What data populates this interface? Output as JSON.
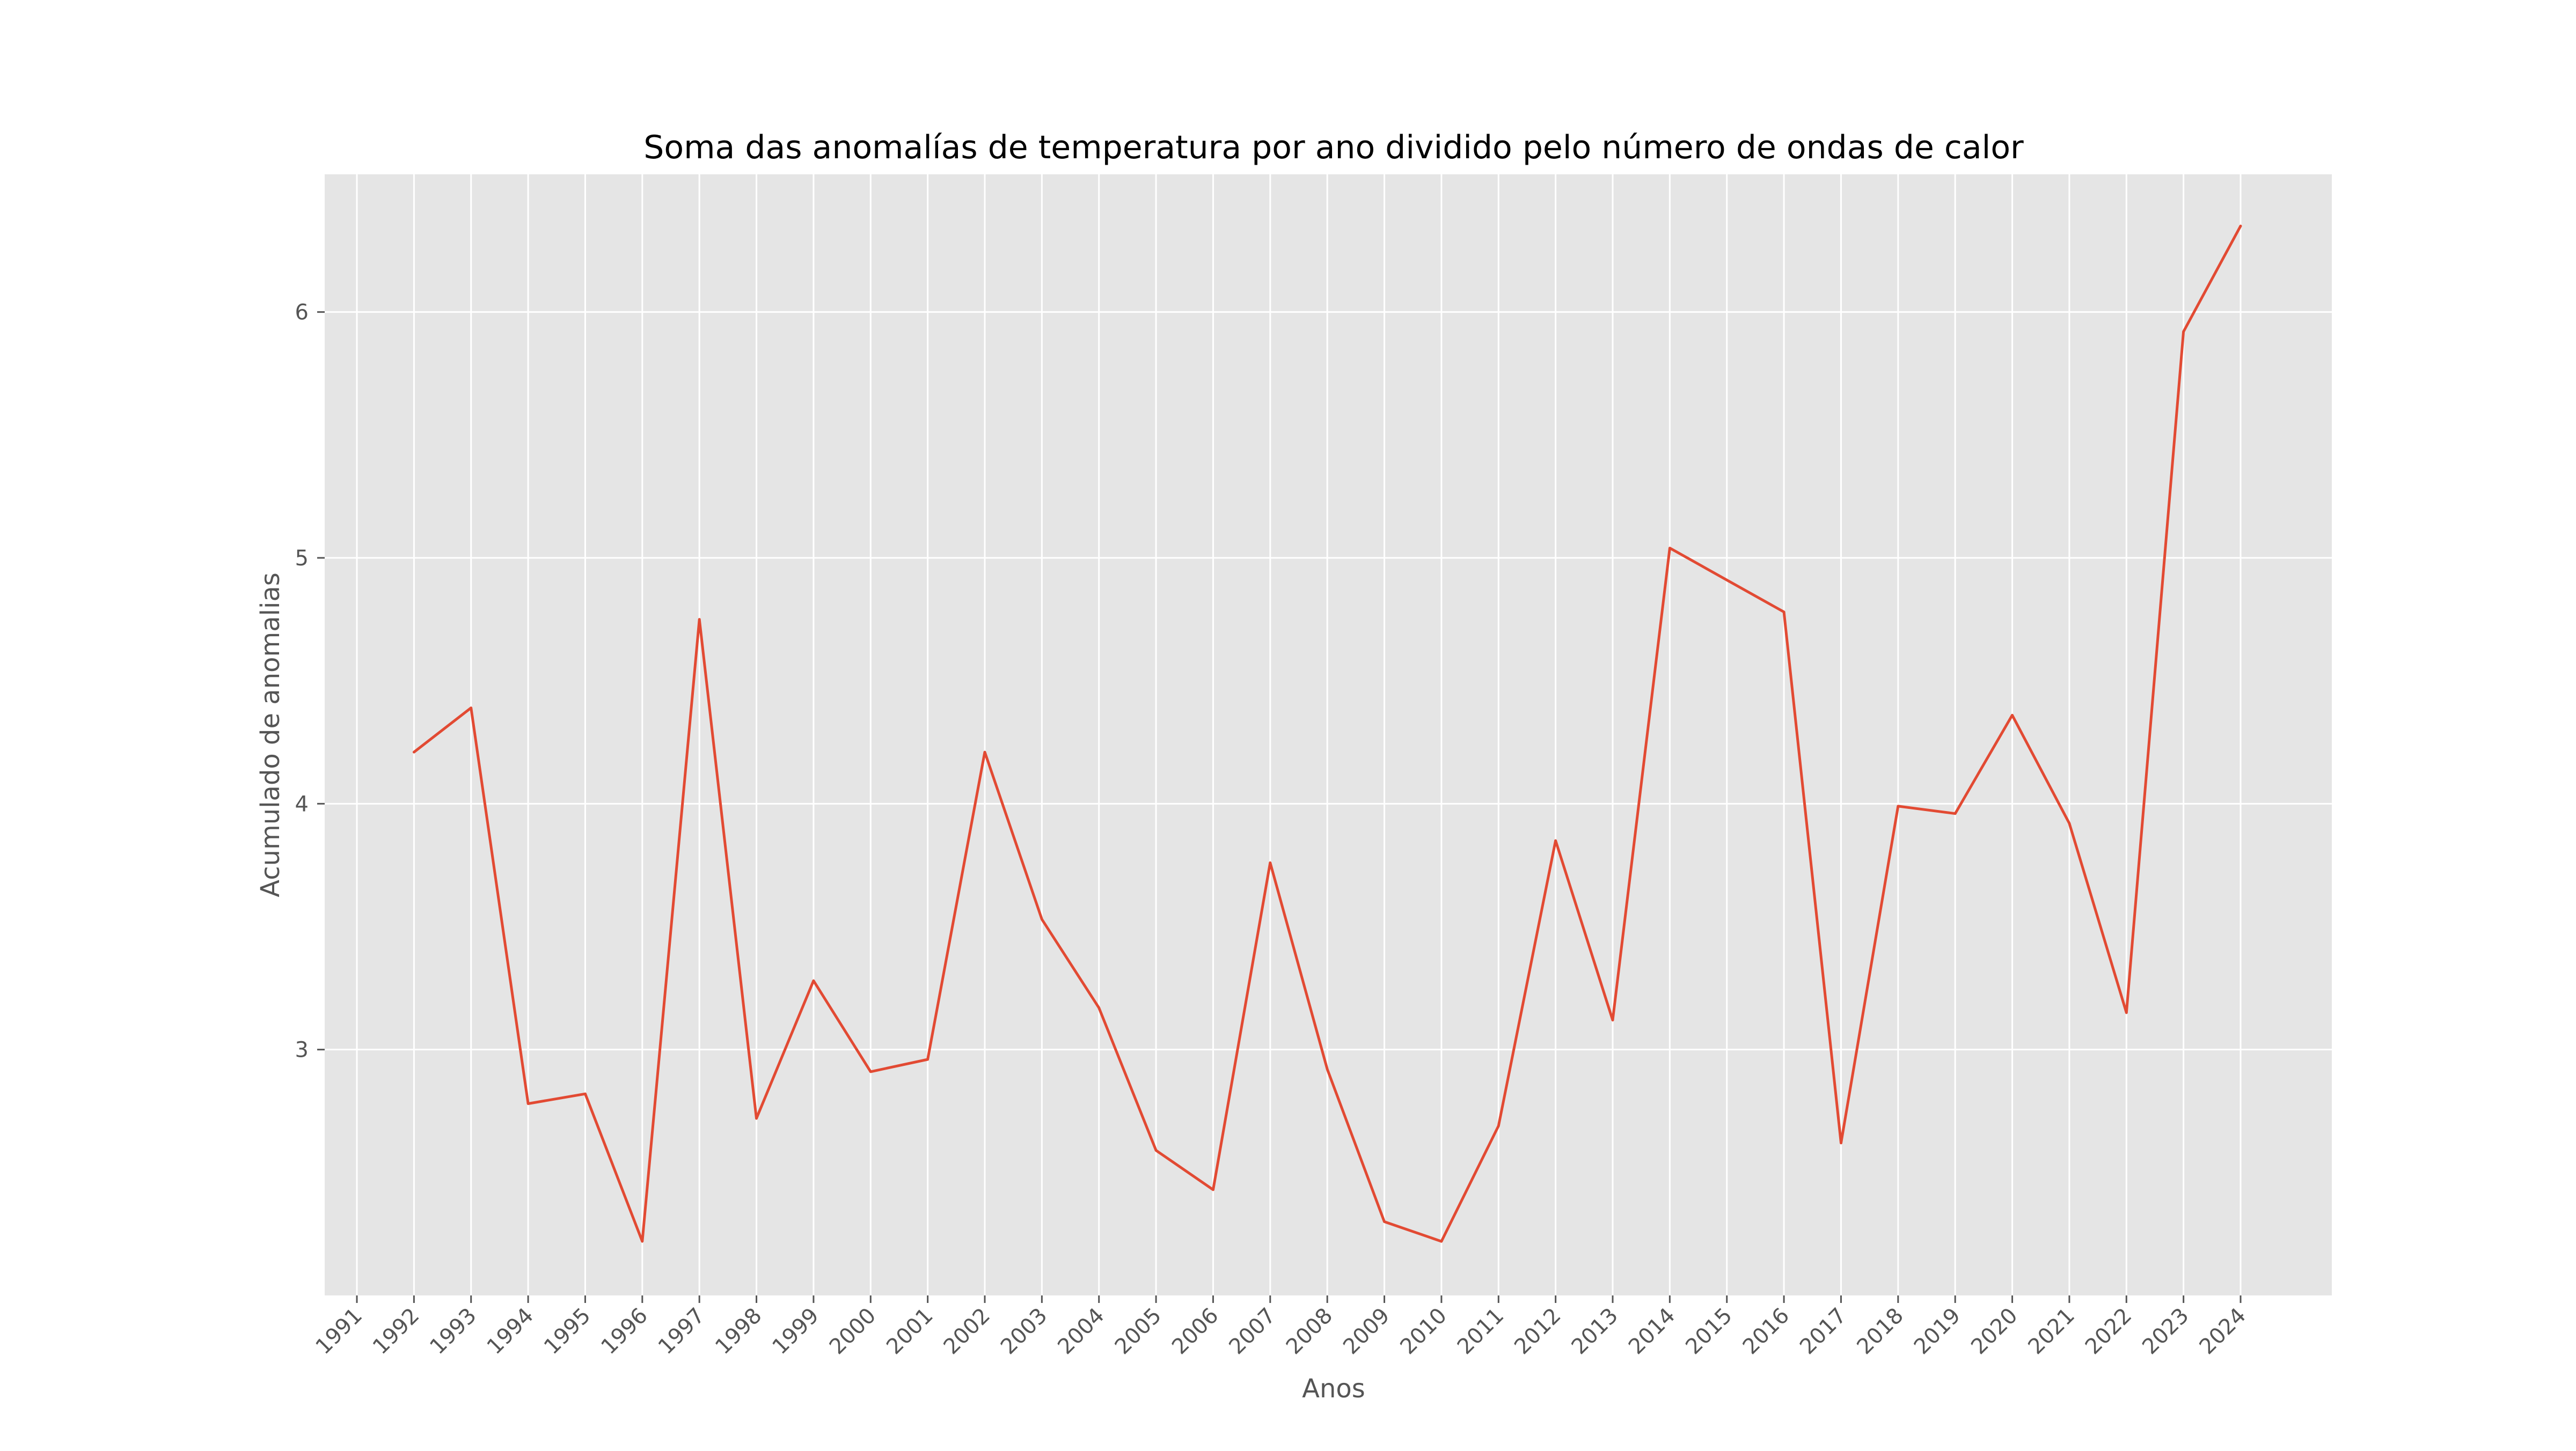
{
  "chart_data": {
    "type": "line",
    "title": "Soma das anomalías de temperatura por ano dividido pelo número de ondas de calor",
    "xlabel": "Anos",
    "ylabel": "Acumulado de anomalias",
    "categories": [
      "1991",
      "1992",
      "1993",
      "1994",
      "1995",
      "1996",
      "1997",
      "1998",
      "1999",
      "2000",
      "2001",
      "2002",
      "2003",
      "2004",
      "2005",
      "2006",
      "2007",
      "2008",
      "2009",
      "2010",
      "2011",
      "2012",
      "2013",
      "2014",
      "2015",
      "2016",
      "2017",
      "2018",
      "2019",
      "2020",
      "2021",
      "2022",
      "2023",
      "2024"
    ],
    "series": [
      {
        "values": [
          null,
          4.21,
          4.39,
          2.78,
          2.82,
          2.22,
          4.75,
          2.72,
          3.28,
          2.91,
          2.96,
          4.21,
          3.53,
          3.17,
          2.59,
          2.43,
          3.76,
          2.92,
          2.3,
          2.22,
          2.69,
          3.85,
          3.12,
          5.04,
          4.91,
          4.78,
          2.62,
          3.99,
          3.96,
          4.36,
          3.92,
          3.15,
          5.92,
          6.35
        ],
        "color": "#E24A33"
      }
    ],
    "yticks": [
      3,
      4,
      5,
      6
    ],
    "ylim": [
      2.0,
      6.56
    ],
    "grid": true,
    "background_color": "#E5E5E5",
    "grid_color": "#FFFFFF"
  }
}
